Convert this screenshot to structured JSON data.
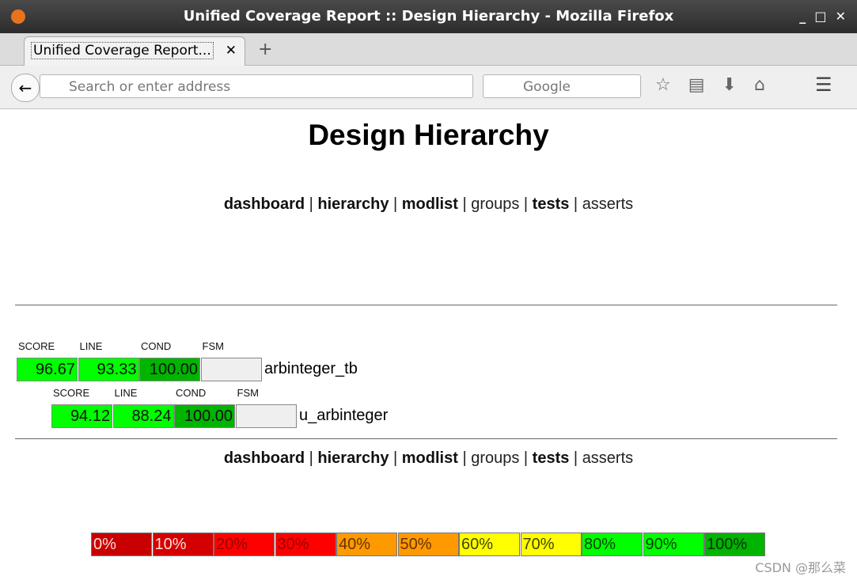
{
  "window": {
    "title": "Unified Coverage Report :: Design Hierarchy - Mozilla Firefox"
  },
  "browser": {
    "tab": "Unified Coverage Report...",
    "address_placeholder": "Search or enter address",
    "search_placeholder": "Google"
  },
  "page": {
    "title": "Design Hierarchy",
    "nav": [
      {
        "label": "dashboard",
        "bold": true
      },
      {
        "label": "hierarchy",
        "bold": true
      },
      {
        "label": "modlist",
        "bold": true
      },
      {
        "label": "groups",
        "bold": false
      },
      {
        "label": "tests",
        "bold": true
      },
      {
        "label": "asserts",
        "bold": false
      }
    ],
    "hierarchy": {
      "headers": [
        "SCORE",
        "LINE",
        "COND",
        "FSM"
      ],
      "values": [
        "96.67",
        "93.33",
        "100.00",
        null
      ],
      "name": "arbinteger_tb",
      "children": [
        {
          "headers": [
            "SCORE",
            "LINE",
            "COND",
            "FSM"
          ],
          "values": [
            "94.12",
            "88.24",
            "100.00",
            null
          ],
          "name": "u_arbinteger",
          "children": []
        }
      ]
    },
    "legend": [
      {
        "label": "0%",
        "color": "#c80000",
        "text_color": "#ffdddd"
      },
      {
        "label": "10%",
        "color": "#d40000",
        "text_color": "#ffdddd"
      },
      {
        "label": "20%",
        "color": "#ff0000",
        "text_color": "#990000"
      },
      {
        "label": "30%",
        "color": "#ff0000",
        "text_color": "#990000"
      },
      {
        "label": "40%",
        "color": "#ff9900",
        "text_color": "#663300"
      },
      {
        "label": "50%",
        "color": "#ff9900",
        "text_color": "#663300"
      },
      {
        "label": "60%",
        "color": "#ffff00",
        "text_color": "#444400"
      },
      {
        "label": "70%",
        "color": "#ffff00",
        "text_color": "#444400"
      },
      {
        "label": "80%",
        "color": "#00ff00",
        "text_color": "#004400"
      },
      {
        "label": "90%",
        "color": "#00ff00",
        "text_color": "#004400"
      },
      {
        "label": "100%",
        "color": "#00b400",
        "text_color": "#003300"
      }
    ]
  },
  "watermark": "CSDN @那么菜"
}
